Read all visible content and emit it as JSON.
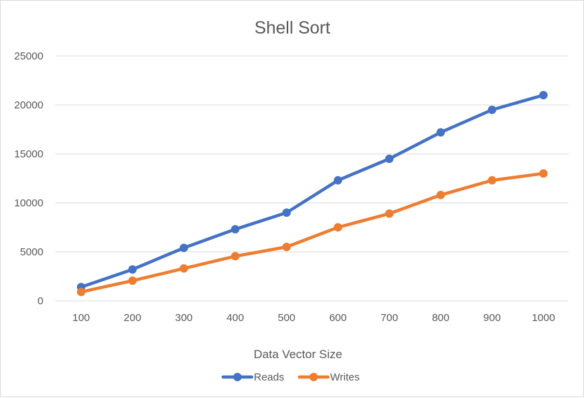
{
  "chart_data": {
    "type": "line",
    "title": "Shell Sort",
    "xlabel": "Data Vector Size",
    "ylabel": "",
    "categories": [
      "100",
      "200",
      "300",
      "400",
      "500",
      "600",
      "700",
      "800",
      "900",
      "1000"
    ],
    "y_ticks": [
      "0",
      "5000",
      "10000",
      "15000",
      "20000",
      "25000"
    ],
    "ylim": [
      0,
      25000
    ],
    "grid": "horizontal",
    "legend_position": "bottom",
    "series": [
      {
        "name": "Reads",
        "color": "#4472C4",
        "values": [
          1400,
          3200,
          5400,
          7300,
          9000,
          12300,
          14500,
          17200,
          19500,
          21000
        ]
      },
      {
        "name": "Writes",
        "color": "#ED7D31",
        "values": [
          900,
          2050,
          3300,
          4550,
          5500,
          7500,
          8900,
          10800,
          12300,
          13000
        ]
      }
    ]
  }
}
